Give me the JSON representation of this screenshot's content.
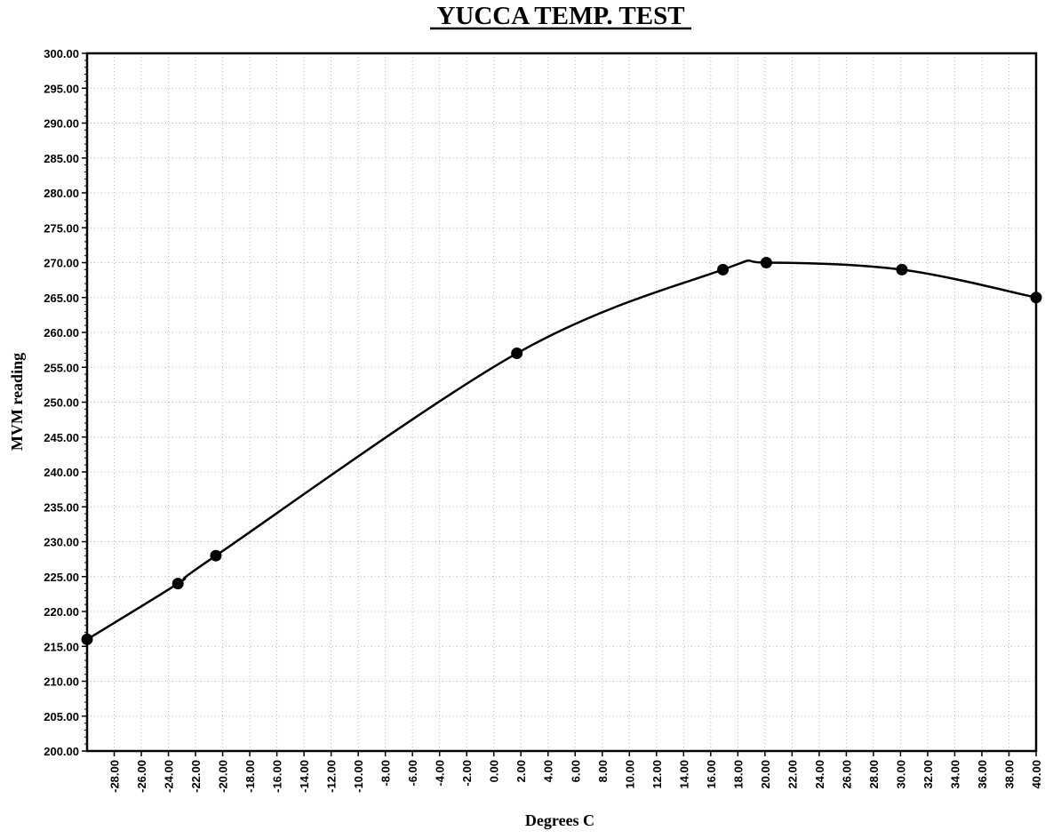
{
  "chart_data": {
    "type": "line",
    "title": "YUCCA TEMP. TEST",
    "xlabel": "Degrees C",
    "ylabel": "MVM reading",
    "xlim": [
      -30,
      40
    ],
    "ylim": [
      200,
      300
    ],
    "x_ticks": [
      -28,
      -26,
      -24,
      -22,
      -20,
      -18,
      -16,
      -14,
      -12,
      -10,
      -8,
      -6,
      -4,
      -2,
      0,
      2,
      4,
      6,
      8,
      10,
      12,
      14,
      16,
      18,
      20,
      22,
      24,
      26,
      28,
      30,
      32,
      34,
      36,
      38,
      40
    ],
    "x_tick_labels": [
      "-28.00",
      "-26.00",
      "-24.00",
      "-22.00",
      "-20.00",
      "-18.00",
      "-16.00",
      "-14.00",
      "-12.00",
      "-10.00",
      "-8.00",
      "-6.00",
      "-4.00",
      "-2.00",
      "0.00",
      "2.00",
      "4.00",
      "6.00",
      "8.00",
      "10.00",
      "12.00",
      "14.00",
      "16.00",
      "18.00",
      "20.00",
      "22.00",
      "24.00",
      "26.00",
      "28.00",
      "30.00",
      "32.00",
      "34.00",
      "36.00",
      "38.00",
      "40.00"
    ],
    "y_ticks": [
      200,
      205,
      210,
      215,
      220,
      225,
      230,
      235,
      240,
      245,
      250,
      255,
      260,
      265,
      270,
      275,
      280,
      285,
      290,
      295,
      300
    ],
    "y_tick_labels": [
      "200.00",
      "205.00",
      "210.00",
      "215.00",
      "220.00",
      "225.00",
      "230.00",
      "235.00",
      "240.00",
      "245.00",
      "250.00",
      "255.00",
      "260.00",
      "265.00",
      "270.00",
      "275.00",
      "280.00",
      "285.00",
      "290.00",
      "295.00",
      "300.00"
    ],
    "grid": true,
    "legend": "none",
    "series": [
      {
        "x": [
          -30,
          -23.3,
          -20.5,
          1.7,
          16.9,
          20.1,
          30.1,
          40
        ],
        "y": [
          216,
          224,
          228,
          257,
          269,
          270,
          269,
          265
        ],
        "color": "#000000",
        "markers": true,
        "smooth": true
      }
    ]
  }
}
